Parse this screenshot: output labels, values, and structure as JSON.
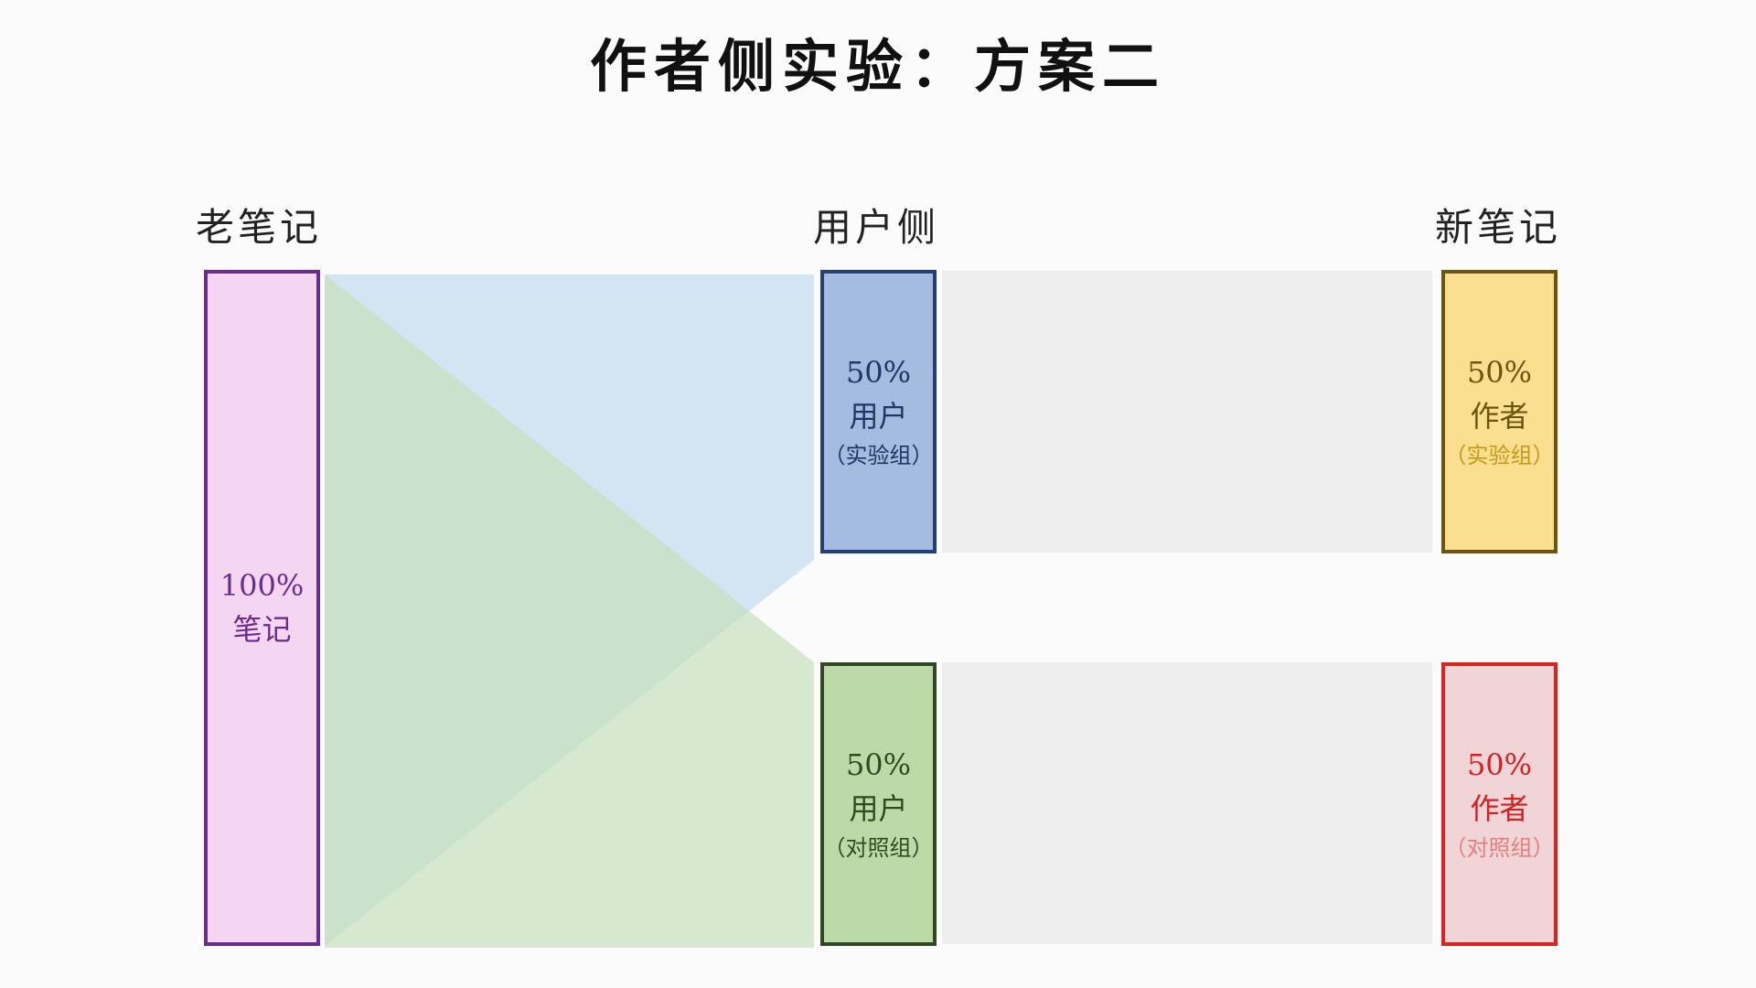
{
  "title": "作者侧实验：方案二",
  "columns": {
    "old": "老笔记",
    "user": "用户侧",
    "new": "新笔记"
  },
  "nodes": {
    "old_notes": {
      "pct": "100%",
      "label": "笔记",
      "color": "#f5d6f2",
      "border": "#6a2c8f"
    },
    "user_exp": {
      "pct": "50%",
      "label": "用户",
      "sub": "（实验组）",
      "color": "#a6bbe0",
      "border": "#24407a"
    },
    "user_ctrl": {
      "pct": "50%",
      "label": "用户",
      "sub": "（对照组）",
      "color": "#bcdaa8",
      "border": "#2f4a22"
    },
    "author_exp": {
      "pct": "50%",
      "label": "作者",
      "sub": "（实验组）",
      "color": "#f9df8f",
      "border": "#6b5510"
    },
    "author_ctrl": {
      "pct": "50%",
      "label": "作者",
      "sub": "（对照组）",
      "color": "#f0d4d6",
      "border": "#dd2222"
    }
  },
  "flows": {
    "to_exp_color": "#c6dcef",
    "to_ctrl_color": "#c6e0bc"
  }
}
